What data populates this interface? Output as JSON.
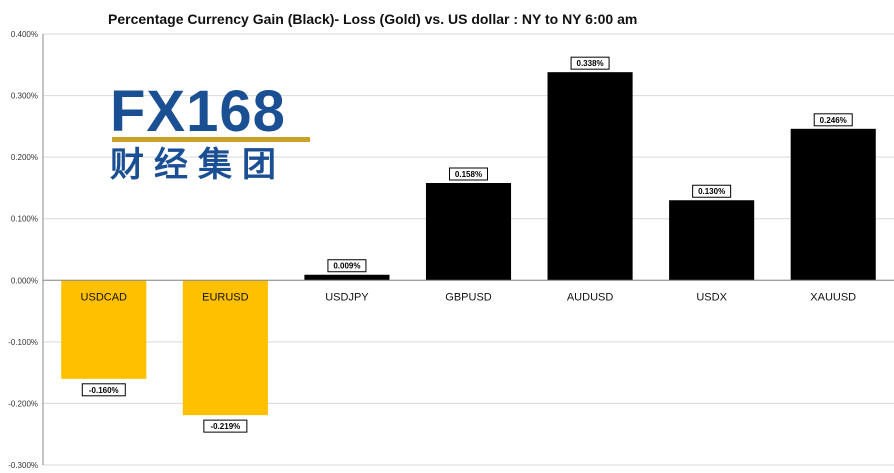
{
  "chart_data": {
    "type": "bar",
    "title": "Percentage Currency  Gain (Black)- Loss (Gold)  vs. US dollar :  NY  to  NY 6:00 am",
    "categories": [
      "USDCAD",
      "EURUSD",
      "USDJPY",
      "GBPUSD",
      "AUDUSD",
      "USDX",
      "XAUUSD"
    ],
    "values": [
      -0.16,
      -0.219,
      0.009,
      0.158,
      0.338,
      0.13,
      0.246
    ],
    "data_labels": [
      "-0.160%",
      "-0.219%",
      "0.009%",
      "0.158%",
      "0.338%",
      "0.130%",
      "0.246%"
    ],
    "ylim": [
      -0.3,
      0.4
    ],
    "yticks": [
      0.4,
      0.3,
      0.2,
      0.1,
      0.0,
      -0.1,
      -0.2,
      -0.3
    ],
    "ytick_labels": [
      "0.400%",
      "0.300%",
      "0.200%",
      "0.100%",
      "0.000%",
      "-0.100%",
      "-0.200%",
      "-0.300%"
    ],
    "grid": true,
    "colors": {
      "gain": "#000000",
      "loss": "#ffc000",
      "grid": "#d9d9d9",
      "axis": "#888888"
    }
  },
  "logo": {
    "latin": "FX168",
    "chinese": "财经集团",
    "colors": {
      "blue": "#1b4f93",
      "gold": "#c9a227"
    }
  }
}
